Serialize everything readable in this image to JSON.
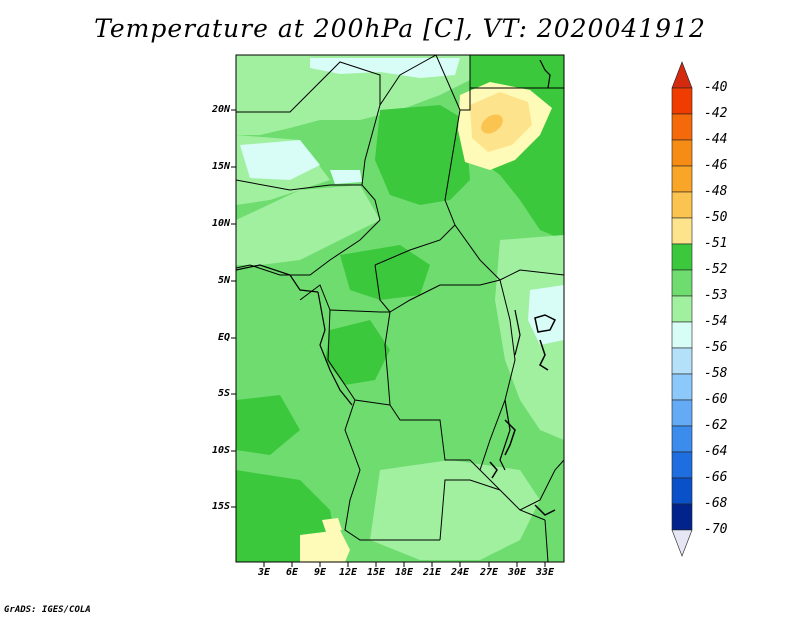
{
  "title": "Temperature at 200hPa [C], VT: 2020041912",
  "credit": "GrADS: IGES/COLA",
  "map": {
    "lat_labels": [
      "20N",
      "15N",
      "10N",
      "5N",
      "EQ",
      "5S",
      "10S",
      "15S"
    ],
    "lon_labels": [
      "3E",
      "6E",
      "9E",
      "12E",
      "15E",
      "18E",
      "21E",
      "24E",
      "27E",
      "30E",
      "33E"
    ]
  },
  "colorbar": {
    "labels": [
      "-40",
      "-42",
      "-44",
      "-46",
      "-48",
      "-50",
      "-51",
      "-52",
      "-53",
      "-54",
      "-56",
      "-58",
      "-60",
      "-62",
      "-64",
      "-66",
      "-68",
      "-70"
    ],
    "colors": {
      "top_arrow": "#d42a10",
      "c_40": "#f03c00",
      "c_42": "#f46a0a",
      "c_44": "#f78c14",
      "c_46": "#f9a628",
      "c_48": "#fbc350",
      "c_50": "#fde48c",
      "c_51": "#fefab8",
      "c_52": "#3cc83c",
      "c_53": "#6edc6e",
      "c_54": "#a0f0a0",
      "c_56": "#d8fcf6",
      "c_58": "#b4e0fa",
      "c_60": "#8cc8fa",
      "c_62": "#64aaf4",
      "c_64": "#3c8cee",
      "c_66": "#1e6ee0",
      "c_68": "#0a50c8",
      "c_70": "#02228c",
      "bottom_arrow": "#e6e6f5"
    }
  }
}
